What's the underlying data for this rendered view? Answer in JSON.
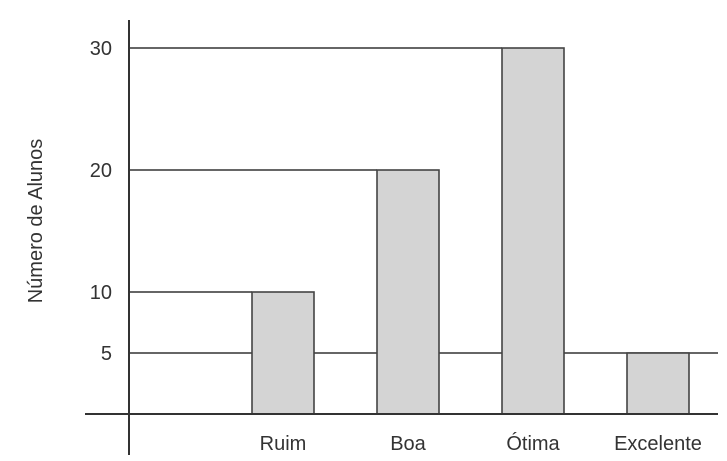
{
  "chart_data": {
    "type": "bar",
    "categories": [
      "Ruim",
      "Boa",
      "Ótima",
      "Excelente"
    ],
    "values": [
      10,
      20,
      30,
      5
    ],
    "ylabel": "Número de Alunos",
    "xlabel": "",
    "yticks": [
      5,
      10,
      20,
      30
    ],
    "ylim": [
      0,
      30
    ],
    "grid": false,
    "reference_lines": [
      5,
      10,
      20,
      30
    ],
    "colors": {
      "bar_fill": "#d4d4d4",
      "bar_stroke": "#444444",
      "axis": "#333333"
    }
  }
}
